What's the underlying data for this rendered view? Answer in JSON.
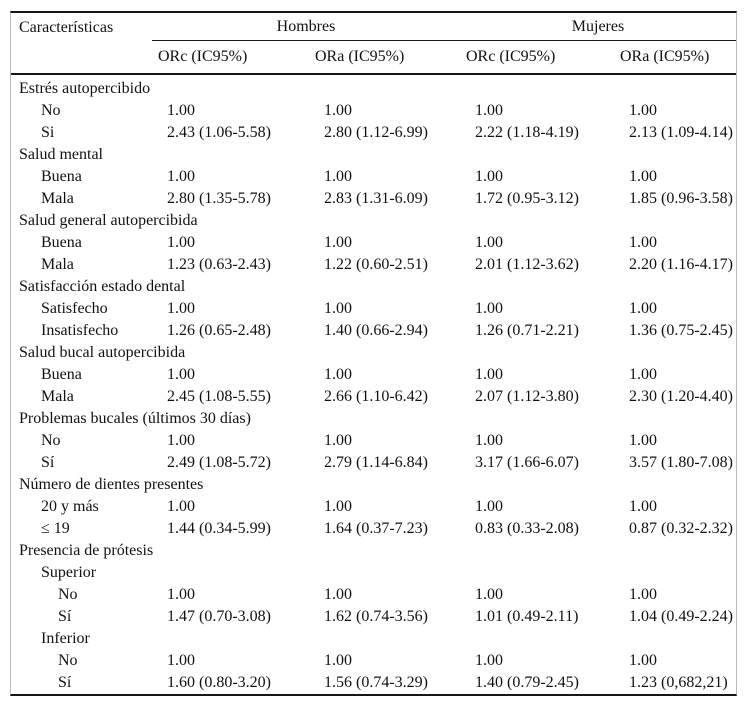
{
  "header": {
    "characteristics": "Características",
    "groups": [
      "Hombres",
      "Mujeres"
    ],
    "subcolumns": [
      "ORc (IC95%)",
      "ORa (IC95%)",
      "ORc (IC95%)",
      "ORa (IC95%)"
    ]
  },
  "rows": [
    {
      "label": "Estrés autopercibido",
      "indent": 0,
      "values": null
    },
    {
      "label": "No",
      "indent": 1,
      "values": [
        "1.00",
        "1.00",
        "1.00",
        "1.00"
      ]
    },
    {
      "label": "Si",
      "indent": 1,
      "values": [
        "2.43 (1.06-5.58)",
        "2.80 (1.12-6.99)",
        "2.22 (1.18-4.19)",
        "2.13 (1.09-4.14)"
      ]
    },
    {
      "label": "Salud mental",
      "indent": 0,
      "values": null
    },
    {
      "label": "Buena",
      "indent": 1,
      "values": [
        "1.00",
        "1.00",
        "1.00",
        "1.00"
      ]
    },
    {
      "label": "Mala",
      "indent": 1,
      "values": [
        "2.80 (1.35-5.78)",
        "2.83 (1.31-6.09)",
        "1.72 (0.95-3.12)",
        "1.85 (0.96-3.58)"
      ]
    },
    {
      "label": "Salud general autopercibida",
      "indent": 0,
      "values": null
    },
    {
      "label": "Buena",
      "indent": 1,
      "values": [
        "1.00",
        "1.00",
        "1.00",
        "1.00"
      ]
    },
    {
      "label": "Mala",
      "indent": 1,
      "values": [
        "1.23 (0.63-2.43)",
        "1.22 (0.60-2.51)",
        "2.01 (1.12-3.62)",
        "2.20 (1.16-4.17)"
      ]
    },
    {
      "label": "Satisfacción estado dental",
      "indent": 0,
      "values": null
    },
    {
      "label": "Satisfecho",
      "indent": 1,
      "values": [
        "1.00",
        "1.00",
        "1.00",
        "1.00"
      ]
    },
    {
      "label": "Insatisfecho",
      "indent": 1,
      "values": [
        "1.26 (0.65-2.48)",
        "1.40 (0.66-2.94)",
        "1.26 (0.71-2.21)",
        "1.36 (0.75-2.45)"
      ]
    },
    {
      "label": "Salud bucal autopercibida",
      "indent": 0,
      "values": null
    },
    {
      "label": "Buena",
      "indent": 1,
      "values": [
        "1.00",
        "1.00",
        "1.00",
        "1.00"
      ]
    },
    {
      "label": "Mala",
      "indent": 1,
      "values": [
        "2.45 (1.08-5.55)",
        "2.66 (1.10-6.42)",
        "2.07 (1.12-3.80)",
        "2.30 (1.20-4.40)"
      ]
    },
    {
      "label": "Problemas bucales (últimos 30 días)",
      "indent": 0,
      "values": null
    },
    {
      "label": "No",
      "indent": 1,
      "values": [
        "1.00",
        "1.00",
        "1.00",
        "1.00"
      ]
    },
    {
      "label": "Sí",
      "indent": 1,
      "values": [
        "2.49 (1.08-5.72)",
        "2.79 (1.14-6.84)",
        "3.17 (1.66-6.07)",
        "3.57 (1.80-7.08)"
      ]
    },
    {
      "label": "Número de dientes presentes",
      "indent": 0,
      "values": null
    },
    {
      "label": "20 y más",
      "indent": 1,
      "values": [
        "1.00",
        "1.00",
        "1.00",
        "1.00"
      ]
    },
    {
      "label": "≤ 19",
      "indent": 1,
      "values": [
        "1.44 (0.34-5.99)",
        "1.64 (0.37-7.23)",
        "0.83 (0.33-2.08)",
        "0.87 (0.32-2.32)"
      ]
    },
    {
      "label": "Presencia de prótesis",
      "indent": 0,
      "values": null
    },
    {
      "label": "Superior",
      "indent": 1,
      "values": null
    },
    {
      "label": "No",
      "indent": 2,
      "values": [
        "1.00",
        "1.00",
        "1.00",
        "1.00"
      ]
    },
    {
      "label": "Sí",
      "indent": 2,
      "values": [
        "1.47 (0.70-3.08)",
        "1.62 (0.74-3.56)",
        "1.01 (0.49-2.11)",
        "1.04 (0.49-2.24)"
      ]
    },
    {
      "label": "Inferior",
      "indent": 1,
      "values": null
    },
    {
      "label": "No",
      "indent": 2,
      "values": [
        "1.00",
        "1.00",
        "1.00",
        "1.00"
      ]
    },
    {
      "label": "Sí",
      "indent": 2,
      "values": [
        "1.60 (0.80-3.20)",
        "1.56 (0.74-3.29)",
        "1.40 (0.79-2.45)",
        "1.23 (0,682,21)"
      ]
    }
  ]
}
